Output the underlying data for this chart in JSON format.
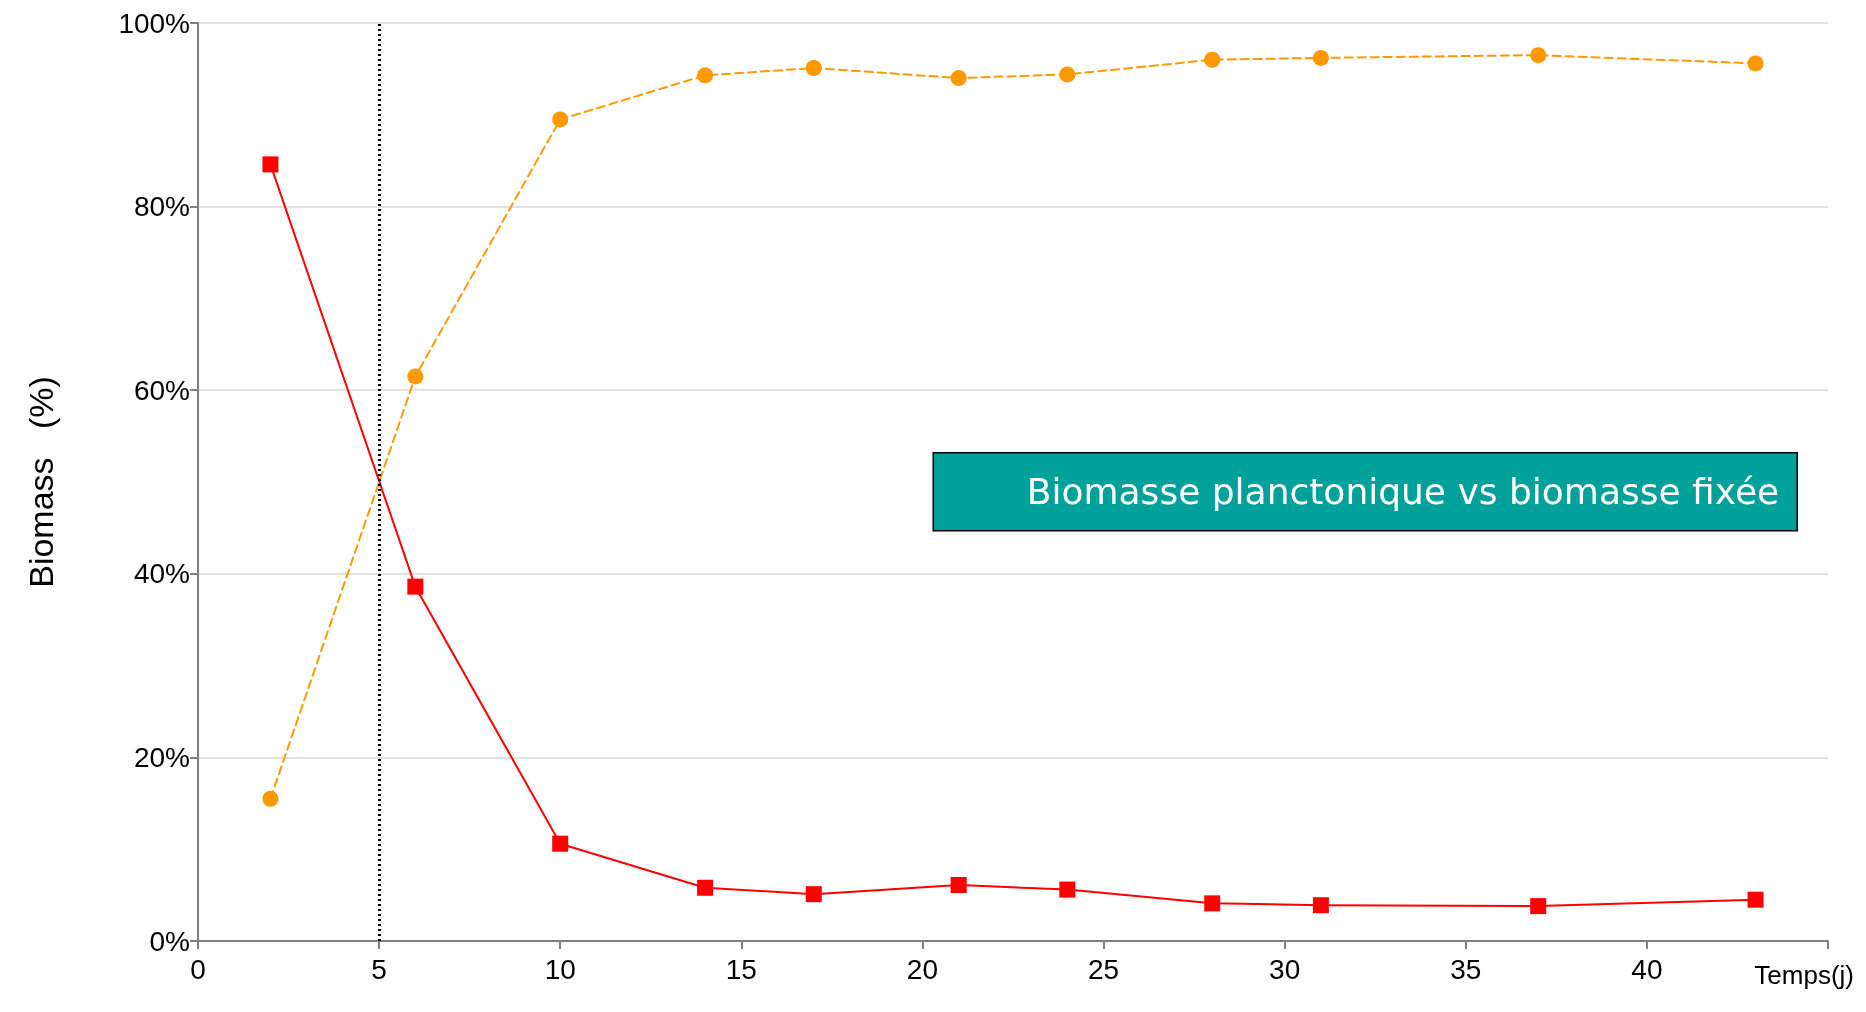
{
  "chart_data": {
    "type": "line",
    "xlabel": "Temps(j)",
    "ylabel": "Biomass   (%)",
    "annotations": [
      "Biomasse planctonique vs biomasse fixée"
    ],
    "xlim": [
      0,
      45
    ],
    "xticks": [
      0,
      5,
      10,
      15,
      20,
      25,
      30,
      35,
      40,
      {
        "value": 45,
        "label": null
      }
    ],
    "ylim": [
      0,
      100
    ],
    "yticks": [
      {
        "value": 0,
        "label": "0%"
      },
      {
        "value": 20,
        "label": "20%"
      },
      {
        "value": 40,
        "label": "40%"
      },
      {
        "value": 60,
        "label": "60%"
      },
      {
        "value": 80,
        "label": "80%"
      },
      {
        "value": 100,
        "label": "100%"
      }
    ],
    "grid": "y",
    "ref_lines": [
      {
        "axis": "x",
        "value": 5,
        "color": "#000000",
        "line_style": "dotted"
      }
    ],
    "series": [
      {
        "color": "#ff0000",
        "marker": "square",
        "line_style": "solid",
        "x": [
          2,
          6,
          10,
          14,
          17,
          21,
          24,
          28,
          31,
          37,
          43
        ],
        "values": [
          84.6,
          38.6,
          10.6,
          5.8,
          5.1,
          6.1,
          5.6,
          4.1,
          3.9,
          3.8,
          4.5
        ]
      },
      {
        "color": "#ff9900",
        "marker": "circle",
        "line_style": "dashed",
        "x": [
          2,
          6,
          10,
          14,
          17,
          21,
          24,
          28,
          31,
          37,
          43
        ],
        "values": [
          15.5,
          61.5,
          89.5,
          94.3,
          95.1,
          94.0,
          94.4,
          96.0,
          96.2,
          96.5,
          95.6
        ]
      }
    ]
  }
}
